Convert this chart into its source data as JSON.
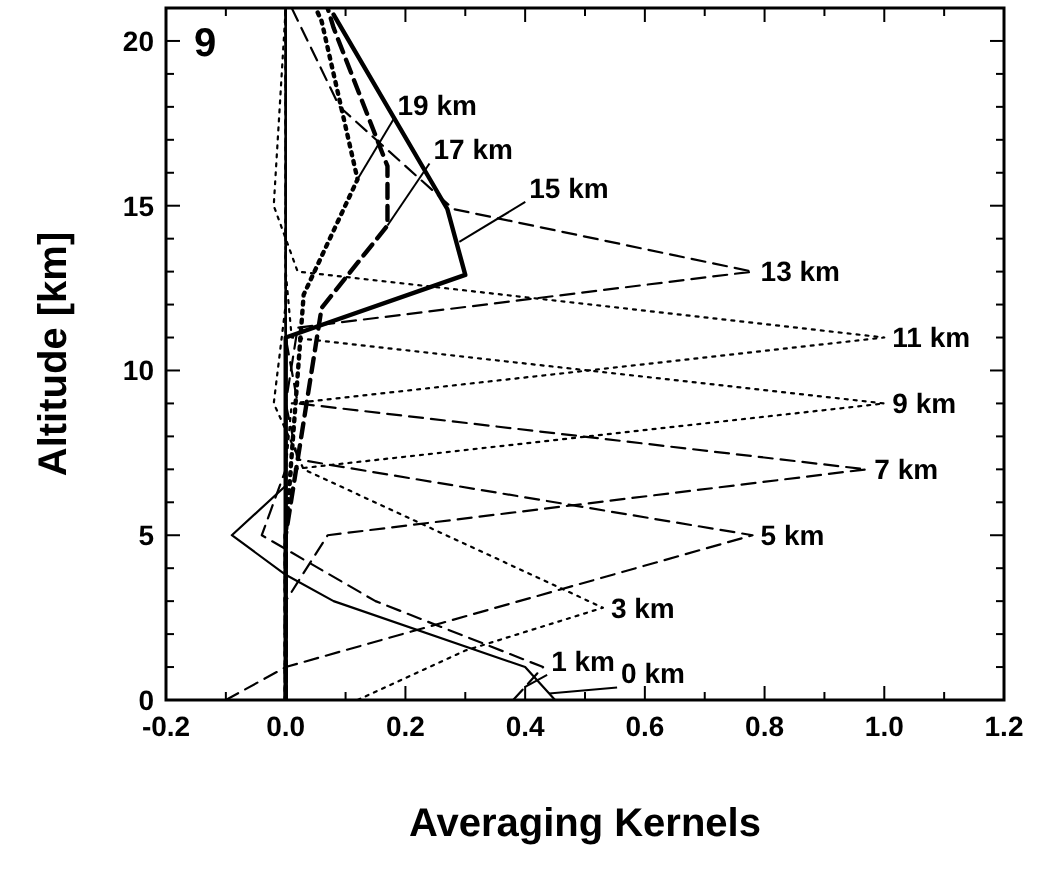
{
  "chart_data": {
    "type": "line",
    "xlabel": "Averaging Kernels",
    "ylabel": "Altitude [km]",
    "xlim": [
      -0.2,
      1.2
    ],
    "xticks": [
      {
        "value": -0.2,
        "label": "-0.2"
      },
      {
        "value": -0.1,
        "label": null
      },
      {
        "value": 0,
        "label": "0.0"
      },
      {
        "value": 0.1,
        "label": null
      },
      {
        "value": 0.2,
        "label": "0.2"
      },
      {
        "value": 0.3,
        "label": null
      },
      {
        "value": 0.4,
        "label": "0.4"
      },
      {
        "value": 0.5,
        "label": null
      },
      {
        "value": 0.6,
        "label": "0.6"
      },
      {
        "value": 0.7,
        "label": null
      },
      {
        "value": 0.8,
        "label": "0.8"
      },
      {
        "value": 0.9,
        "label": null
      },
      {
        "value": 1.0,
        "label": "1.0"
      },
      {
        "value": 1.1,
        "label": null
      },
      {
        "value": 1.2,
        "label": "1.2"
      }
    ],
    "ylim": [
      0,
      21
    ],
    "yticks": [
      0,
      {
        "value": 1,
        "label": null
      },
      {
        "value": 2,
        "label": null
      },
      {
        "value": 3,
        "label": null
      },
      {
        "value": 4,
        "label": null
      },
      5,
      {
        "value": 6,
        "label": null
      },
      {
        "value": 7,
        "label": null
      },
      {
        "value": 8,
        "label": null
      },
      {
        "value": 9,
        "label": null
      },
      10,
      {
        "value": 11,
        "label": null
      },
      {
        "value": 12,
        "label": null
      },
      {
        "value": 13,
        "label": null
      },
      {
        "value": 14,
        "label": null
      },
      15,
      {
        "value": 16,
        "label": null
      },
      {
        "value": 17,
        "label": null
      },
      {
        "value": 18,
        "label": null
      },
      {
        "value": 19,
        "label": null
      },
      20,
      {
        "value": 21,
        "label": null
      }
    ],
    "grid": false,
    "series": [
      {
        "color": "#000000",
        "line_style": "solid",
        "x": [
          0.45,
          0.4,
          0.08,
          0,
          -0.09,
          0,
          0,
          0
        ],
        "values": [
          0,
          1,
          3,
          3.8,
          5,
          6.5,
          12,
          21
        ]
      },
      {
        "color": "#000000",
        "line_style": "dashed",
        "x": [
          0.38,
          0.43,
          0.15,
          -0.04,
          0,
          0,
          0
        ],
        "values": [
          0,
          1,
          3,
          5,
          7,
          12,
          21
        ]
      },
      {
        "color": "#000000",
        "line_style": "dotted",
        "x": [
          0.12,
          0.3,
          0.53,
          0.03,
          -0.02,
          0,
          0
        ],
        "values": [
          0,
          1.5,
          2.8,
          7,
          9,
          12,
          21
        ]
      },
      {
        "color": "#000000",
        "line_style": "dashed",
        "x": [
          -0.1,
          0,
          0.78,
          0.02,
          0,
          0,
          0
        ],
        "values": [
          0,
          1,
          5,
          7.3,
          9,
          12,
          21
        ]
      },
      {
        "color": "#000000",
        "line_style": "dashed",
        "x": [
          0,
          0,
          0.07,
          0.97,
          0.02,
          0,
          0
        ],
        "values": [
          0,
          3,
          5,
          7,
          9,
          11,
          21
        ]
      },
      {
        "color": "#000000",
        "line_style": "dotted",
        "x": [
          0,
          0,
          0.01,
          1.0,
          0.01,
          0,
          0
        ],
        "values": [
          0,
          5,
          7,
          9,
          11,
          13,
          21
        ]
      },
      {
        "color": "#000000",
        "line_style": "dotted",
        "x": [
          0,
          0,
          0.01,
          1.0,
          0.02,
          -0.02,
          0
        ],
        "values": [
          0,
          7,
          9,
          11,
          13,
          15,
          21
        ]
      },
      {
        "color": "#000000",
        "line_style": "dashed",
        "x": [
          0,
          0,
          0.02,
          0.78,
          0.28,
          0.09,
          0.01
        ],
        "values": [
          0,
          9,
          11.3,
          13,
          14.9,
          18,
          21
        ]
      },
      {
        "color": "#000000",
        "line_style": "solid",
        "x": [
          0,
          0,
          0,
          0.3,
          0.27,
          0.08
        ],
        "values": [
          0,
          5,
          11,
          12.9,
          14.9,
          20.8
        ]
      },
      {
        "color": "#000000",
        "line_style": "dashed",
        "x": [
          0,
          0,
          0.06,
          0.17,
          0.17,
          0.08,
          0.07
        ],
        "values": [
          0,
          5,
          11.9,
          14.4,
          16.2,
          20.4,
          21
        ]
      },
      {
        "color": "#000000",
        "line_style": "dotted",
        "x": [
          0,
          0,
          0.03,
          0.12,
          0.06,
          0.05
        ],
        "values": [
          0,
          5,
          12.3,
          15.8,
          20.6,
          21
        ]
      }
    ],
    "annotations": [
      "9",
      {
        "text": "19 km",
        "x": 0.12,
        "y": 15.8
      },
      {
        "text": "17 km",
        "x": 0.17,
        "y": 14.4
      },
      {
        "text": "15 km",
        "x": 0.29,
        "y": 13.9
      },
      {
        "text": "13 km",
        "x": 0.78,
        "y": 13
      },
      {
        "text": "11 km",
        "x": 1.0,
        "y": 11
      },
      {
        "text": "9 km",
        "x": 1.0,
        "y": 9
      },
      {
        "text": "7 km",
        "x": 0.97,
        "y": 7
      },
      {
        "text": "5 km",
        "x": 0.78,
        "y": 5
      },
      {
        "text": "3 km",
        "x": 0.53,
        "y": 2.8
      },
      {
        "text": "1 km",
        "x": 0.4,
        "y": 0.4
      },
      {
        "text": "0 km",
        "x": 0.44,
        "y": 0.2
      }
    ]
  }
}
